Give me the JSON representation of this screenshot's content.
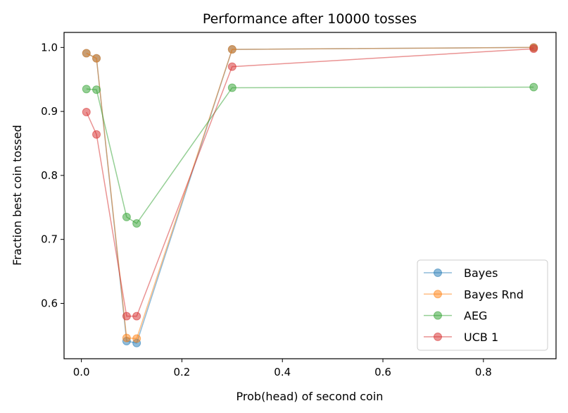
{
  "chart_data": {
    "type": "line",
    "title": "Performance after 10000 tosses",
    "xlabel": "Prob(head) of second coin",
    "ylabel": "Fraction best coin tossed",
    "xlim": [
      -0.0345,
      0.9445
    ],
    "ylim": [
      0.5135,
      1.0235
    ],
    "xticks": [
      0.0,
      0.2,
      0.4,
      0.6,
      0.8
    ],
    "xtick_labels": [
      "0.0",
      "0.2",
      "0.4",
      "0.6",
      "0.8"
    ],
    "yticks": [
      0.6,
      0.7,
      0.8,
      0.9,
      1.0
    ],
    "ytick_labels": [
      "0.6",
      "0.7",
      "0.8",
      "0.9",
      "1.0"
    ],
    "grid": false,
    "legend_position": "lower-right",
    "x": [
      0.01,
      0.03,
      0.09,
      0.11,
      0.3,
      0.9
    ],
    "series": [
      {
        "name": "Bayes",
        "color": "#1f77b4",
        "values": [
          0.991,
          0.983,
          0.541,
          0.538,
          0.997,
          1.0
        ]
      },
      {
        "name": "Bayes Rnd",
        "color": "#ff7f0e",
        "values": [
          0.991,
          0.983,
          0.546,
          0.545,
          0.997,
          1.0
        ]
      },
      {
        "name": "AEG",
        "color": "#2ca02c",
        "values": [
          0.935,
          0.934,
          0.735,
          0.725,
          0.937,
          0.938
        ]
      },
      {
        "name": "UCB 1",
        "color": "#d62728",
        "values": [
          0.899,
          0.864,
          0.58,
          0.58,
          0.97,
          0.998
        ]
      }
    ]
  }
}
